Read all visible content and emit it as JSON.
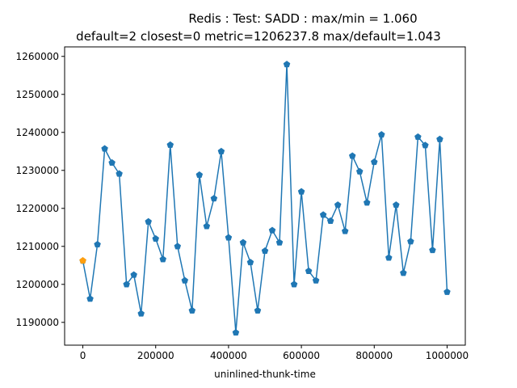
{
  "chart_data": {
    "type": "line",
    "title": "Redis : Test: SADD : max/min = 1.060",
    "subtitle": "default=2 closest=0 metric=1206237.8 max/default=1.043",
    "xlabel": "uninlined-thunk-time",
    "ylabel": "",
    "xlim": [
      -50000,
      1050000
    ],
    "ylim": [
      1184000,
      1262500
    ],
    "xticks": [
      0,
      200000,
      400000,
      600000,
      800000,
      1000000
    ],
    "xtick_labels": [
      "0",
      "200000",
      "400000",
      "600000",
      "800000",
      "1000000"
    ],
    "yticks": [
      1190000,
      1200000,
      1210000,
      1220000,
      1230000,
      1240000,
      1250000,
      1260000
    ],
    "ytick_labels": [
      "1190000",
      "1200000",
      "1210000",
      "1220000",
      "1230000",
      "1240000",
      "1250000",
      "1260000"
    ],
    "grid": false,
    "series": [
      {
        "color": "#1f77b4",
        "marker": "pentagon",
        "x": [
          0,
          20000,
          40000,
          60000,
          80000,
          100000,
          120000,
          140000,
          160000,
          180000,
          200000,
          220000,
          240000,
          260000,
          280000,
          300000,
          320000,
          340000,
          360000,
          380000,
          400000,
          420000,
          440000,
          460000,
          480000,
          500000,
          520000,
          540000,
          560000,
          580000,
          600000,
          620000,
          640000,
          660000,
          680000,
          700000,
          720000,
          740000,
          760000,
          780000,
          800000,
          820000,
          840000,
          860000,
          880000,
          900000,
          920000,
          940000,
          960000,
          980000,
          1000000
        ],
        "y": [
          1206200,
          1196200,
          1210500,
          1235700,
          1232000,
          1229100,
          1200000,
          1202500,
          1192300,
          1216500,
          1212000,
          1206600,
          1236700,
          1210000,
          1201000,
          1193100,
          1228800,
          1215300,
          1222600,
          1235000,
          1212300,
          1187300,
          1211000,
          1205800,
          1193100,
          1208800,
          1214200,
          1211000,
          1257900,
          1200000,
          1224400,
          1203500,
          1201000,
          1218300,
          1216700,
          1220900,
          1214000,
          1233800,
          1229700,
          1221500,
          1232200,
          1239400,
          1207000,
          1220900,
          1203000,
          1211300,
          1238800,
          1236600,
          1209000,
          1238200,
          1198000
        ]
      }
    ],
    "highlight": {
      "color": "#ff9f0e",
      "marker": "pentagon",
      "x": 0,
      "y": 1206237.8
    }
  }
}
